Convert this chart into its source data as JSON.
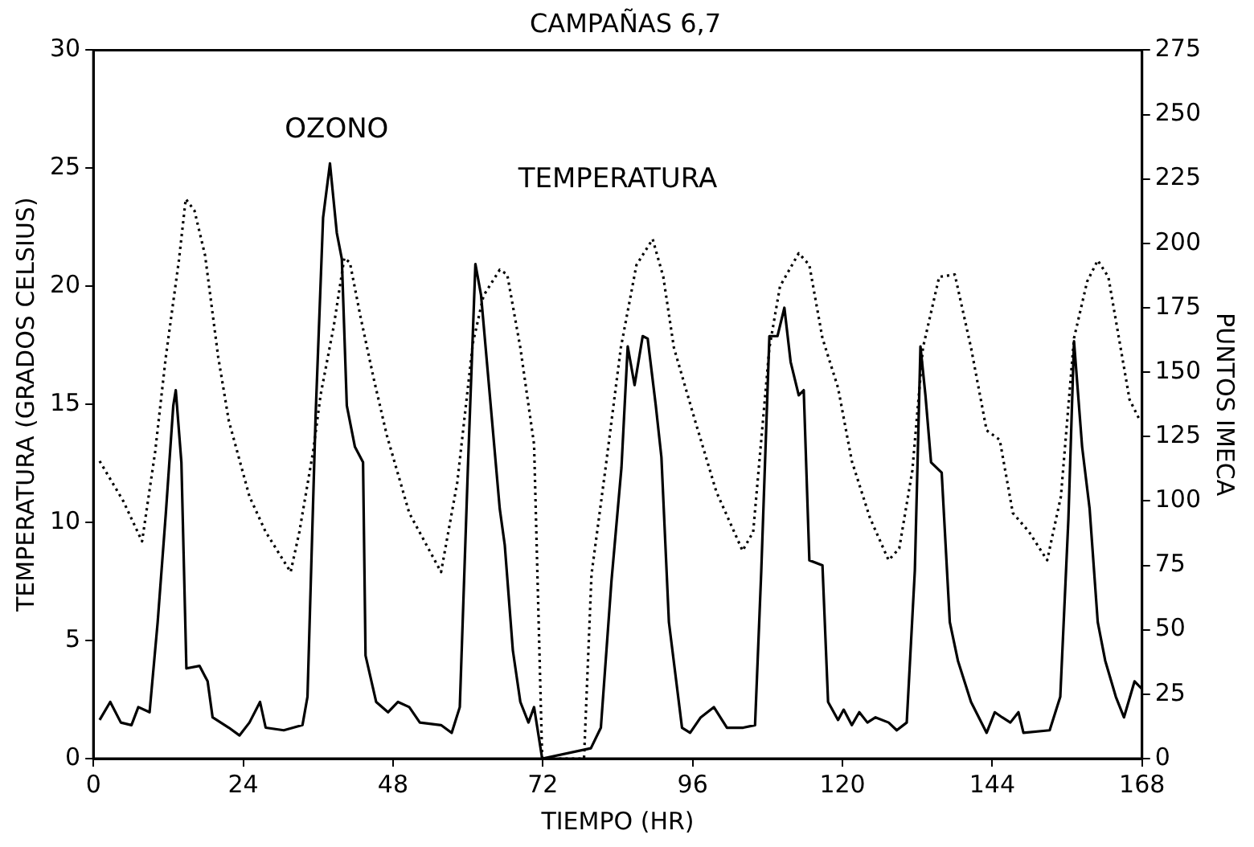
{
  "chart_data": {
    "type": "line",
    "title": "CAMPAÑAS 6,7",
    "xlabel": "TIEMPO (HR)",
    "ylabel": "TEMPERATURA (GRADOS CELSIUS)",
    "y2label": "PUNTOS IMECA",
    "xlim": [
      0,
      168
    ],
    "xticks": [
      0,
      24,
      48,
      72,
      96,
      120,
      144,
      168
    ],
    "ylim": [
      0,
      30
    ],
    "yticks": [
      0,
      5,
      10,
      15,
      20,
      25,
      30
    ],
    "y2lim": [
      0,
      275
    ],
    "y2ticks": [
      0,
      25,
      50,
      75,
      100,
      125,
      150,
      175,
      200,
      225,
      250,
      275
    ],
    "grid": false,
    "legend": false,
    "marker": "none",
    "series": [
      {
        "name": "TEMPERATURA",
        "color": "#000000",
        "line_style": "dotted",
        "axis": "y",
        "x": [
          1,
          4.8,
          7.8,
          9.9,
          11.6,
          13.7,
          14.8,
          16.2,
          17.9,
          20,
          21.7,
          25,
          27.6,
          31.6,
          33,
          35.2,
          36.4,
          38.5,
          40.2,
          41.1,
          42.8,
          44.9,
          47,
          50.6,
          55.7,
          58.3,
          60.8,
          62.5,
          65.1,
          66.3,
          68.4,
          70.6,
          71.9,
          78.6,
          79.8,
          82,
          84.5,
          87,
          89.6,
          91.3,
          93,
          96.4,
          99.8,
          104,
          105.7,
          108.3,
          110,
          113,
          114.7,
          116.8,
          119.3,
          121.5,
          124.4,
          127.4,
          129.1,
          131.2,
          132.9,
          135.5,
          138,
          140.6,
          143.1,
          145.2,
          147.3,
          149.9,
          152.8,
          155,
          157.1,
          159.2,
          160.9,
          162.6,
          166,
          167.7
        ],
        "values": [
          12.6,
          10.9,
          9.2,
          13,
          17,
          21.1,
          23.7,
          23.2,
          21.3,
          17,
          14.3,
          11.1,
          9.6,
          7.9,
          9.6,
          13,
          15.4,
          18.3,
          21.2,
          21,
          18.7,
          16.1,
          13.7,
          10.4,
          7.9,
          11.7,
          17.6,
          19.6,
          20.7,
          20.5,
          17.4,
          13.3,
          0,
          0,
          7.8,
          12.2,
          17.4,
          20.9,
          22,
          20.4,
          17.4,
          14.3,
          11.3,
          8.8,
          9.6,
          17.4,
          20,
          21.4,
          20.9,
          17.8,
          15.7,
          12.6,
          10.2,
          8.4,
          8.9,
          12.2,
          17.4,
          20.4,
          20.5,
          17.4,
          13.9,
          13.5,
          10.4,
          9.6,
          8.4,
          11.1,
          17.8,
          20.2,
          21.1,
          20.4,
          15.2,
          14.3
        ]
      },
      {
        "name": "OZONO",
        "color": "#000000",
        "line_style": "solid",
        "axis": "y2",
        "x": [
          1,
          2.7,
          4.4,
          6.1,
          7.2,
          9,
          10.3,
          11.6,
          12.8,
          13.2,
          14.1,
          14.9,
          17,
          18.3,
          19.1,
          21.7,
          23.4,
          25,
          26.7,
          27.6,
          30.5,
          33.5,
          34.3,
          35.6,
          36.8,
          37.9,
          39,
          39.8,
          40.6,
          41.9,
          43.2,
          43.6,
          45.3,
          47.2,
          48.8,
          50.6,
          52.3,
          55.7,
          57.4,
          58.7,
          60,
          61.2,
          62.1,
          63.8,
          65.1,
          65.9,
          67.2,
          68.4,
          69.7,
          70.6,
          71.9,
          79.7,
          81.3,
          83,
          84.6,
          85.6,
          86.7,
          88,
          88.8,
          90.1,
          91,
          92.2,
          94.3,
          95.6,
          97.3,
          99.4,
          101.5,
          104.1,
          106,
          107,
          108.3,
          109.6,
          110.7,
          111.7,
          113,
          113.8,
          114.7,
          116.8,
          117.7,
          119.3,
          120.2,
          121.5,
          122.7,
          124,
          125.3,
          127.4,
          128.7,
          130.3,
          131.6,
          132.5,
          133.3,
          134.2,
          135.9,
          137.2,
          138.5,
          140.6,
          143.1,
          144.4,
          145.6,
          146.9,
          148.2,
          149,
          153.2,
          154.9,
          156.2,
          157.1,
          158.4,
          159.6,
          160.9,
          162.1,
          163.8,
          165.1,
          166.8,
          168
        ],
        "values": [
          15,
          22,
          14,
          13,
          20,
          18,
          53,
          95,
          137,
          143,
          115,
          35,
          36,
          30,
          16,
          12,
          9,
          14,
          22,
          12,
          11,
          13,
          24,
          133,
          210,
          231,
          204,
          194,
          137,
          121,
          115,
          40,
          22,
          18,
          22,
          20,
          14,
          13,
          10,
          20,
          113,
          192,
          180,
          133,
          97,
          83,
          42,
          22,
          14,
          20,
          0,
          4,
          12,
          69,
          113,
          160,
          145,
          164,
          163,
          137,
          117,
          53,
          12,
          10,
          16,
          20,
          12,
          12,
          13,
          73,
          164,
          164,
          175,
          154,
          141,
          143,
          77,
          75,
          22,
          15,
          19,
          13,
          18,
          14,
          16,
          14,
          11,
          14,
          73,
          160,
          141,
          115,
          111,
          53,
          38,
          22,
          10,
          18,
          16,
          14,
          18,
          10,
          11,
          24,
          93,
          162,
          121,
          97,
          53,
          38,
          24,
          16,
          30,
          27
        ]
      }
    ]
  }
}
